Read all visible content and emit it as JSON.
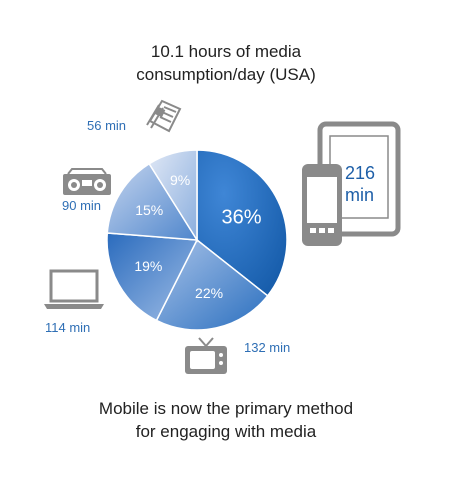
{
  "chart_data": {
    "type": "pie",
    "title_line1": "10.1 hours of media",
    "title_line2": "consumption/day (USA)",
    "slices": [
      {
        "label": "36%",
        "value": 36,
        "minutes": "216 min",
        "minutes_line1": "216",
        "minutes_line2": "min",
        "icon": "mobile-tablet-icon",
        "color": "#1e6bc0"
      },
      {
        "label": "22%",
        "value": 22,
        "minutes": "132 min",
        "icon": "tv-icon",
        "color": "#5b8fd0"
      },
      {
        "label": "19%",
        "value": 19,
        "minutes": "114 min",
        "icon": "laptop-icon",
        "color": "#4f86cc"
      },
      {
        "label": "15%",
        "value": 15,
        "minutes": "90 min",
        "icon": "radio-icon",
        "color": "#6f9ad6"
      },
      {
        "label": "9%",
        "value": 9,
        "minutes": "56 min",
        "icon": "newspaper-icon",
        "color": "#9db8e2"
      }
    ],
    "footer_line1": "Mobile is now the primary method",
    "footer_line2": "for engaging with media"
  }
}
